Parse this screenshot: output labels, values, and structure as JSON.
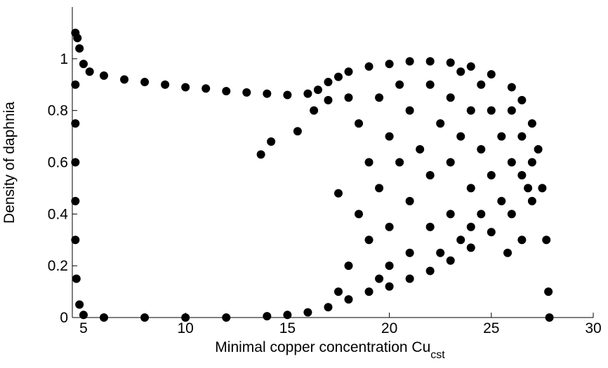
{
  "chart_data": {
    "type": "scatter",
    "x_label": "Minimal copper concentration Cu",
    "x_label_subscript": "cst",
    "y_label": "Density of daphnia",
    "color": "#000000",
    "x": [
      4.6,
      4.7,
      4.8,
      5,
      5.3,
      6,
      7,
      8,
      9,
      10,
      11,
      12,
      13,
      14,
      15,
      16,
      16.5,
      17,
      17.5,
      18,
      19,
      20,
      21,
      22,
      23,
      24,
      25,
      26,
      26.5,
      27,
      27.3,
      27.5,
      27.7,
      27.8,
      27.85,
      4.6,
      4.6,
      4.6,
      4.6,
      4.6,
      4.65,
      4.8,
      5,
      6,
      8,
      10,
      12,
      14,
      15,
      16,
      17,
      18,
      19,
      20,
      21,
      22,
      23,
      24,
      25,
      26,
      26.8,
      13.7,
      14.2,
      15.5,
      16.3,
      17.5,
      17,
      18,
      18.5,
      18.5,
      19,
      19,
      19.5,
      19.5,
      20,
      20,
      20,
      20.5,
      20.5,
      21,
      21,
      21,
      21.5,
      22,
      22,
      22,
      22.5,
      22.5,
      23,
      23,
      23,
      23.5,
      23.5,
      23.5,
      24,
      24,
      24,
      24.5,
      24.5,
      24.5,
      25,
      25,
      25.5,
      25.5,
      26,
      26,
      26.5,
      26.5,
      27,
      27,
      25.8,
      26.5,
      19.5,
      18,
      17.5
    ],
    "values": [
      1.1,
      1.08,
      1.04,
      0.98,
      0.95,
      0.935,
      0.92,
      0.91,
      0.9,
      0.89,
      0.885,
      0.875,
      0.87,
      0.865,
      0.86,
      0.865,
      0.88,
      0.91,
      0.93,
      0.95,
      0.97,
      0.98,
      0.99,
      0.99,
      0.985,
      0.97,
      0.94,
      0.89,
      0.84,
      0.75,
      0.65,
      0.5,
      0.3,
      0.1,
      0,
      0.9,
      0.75,
      0.6,
      0.45,
      0.3,
      0.15,
      0.05,
      0.01,
      0,
      0,
      0,
      0,
      0.005,
      0.01,
      0.02,
      0.04,
      0.07,
      0.1,
      0.12,
      0.15,
      0.18,
      0.22,
      0.27,
      0.33,
      0.4,
      0.5,
      0.63,
      0.68,
      0.72,
      0.8,
      0.48,
      0.84,
      0.85,
      0.75,
      0.4,
      0.6,
      0.3,
      0.85,
      0.5,
      0.7,
      0.35,
      0.2,
      0.9,
      0.6,
      0.8,
      0.45,
      0.25,
      0.65,
      0.9,
      0.55,
      0.35,
      0.75,
      0.25,
      0.85,
      0.6,
      0.4,
      0.95,
      0.7,
      0.3,
      0.8,
      0.5,
      0.35,
      0.9,
      0.65,
      0.4,
      0.8,
      0.55,
      0.7,
      0.45,
      0.8,
      0.6,
      0.7,
      0.55,
      0.6,
      0.45,
      0.25,
      0.3,
      0.15,
      0.2,
      0.1
    ],
    "xlim": [
      4.45,
      30
    ],
    "ylim": [
      0,
      1.2
    ],
    "xticks": [
      5,
      10,
      15,
      20,
      25,
      30
    ],
    "yticks": [
      0,
      0.2,
      0.4,
      0.6,
      0.8,
      1
    ],
    "grid": false
  }
}
